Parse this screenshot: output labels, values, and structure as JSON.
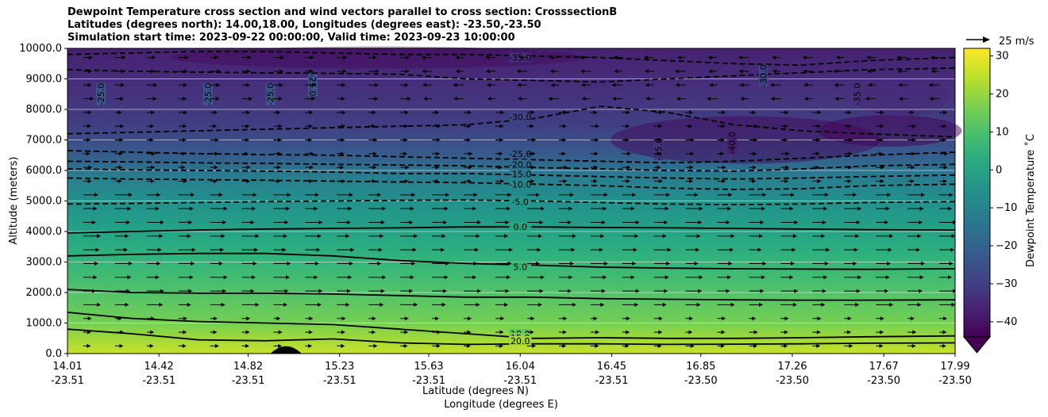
{
  "chart_data": {
    "type": "heatmap",
    "title_lines": [
      "Dewpoint Temperature cross section and wind vectors parallel to cross section: CrosssectionB",
      "Latitudes (degrees north): 14.00,18.00, Longitudes (degrees east): -23.50,-23.50",
      "Simulation start time: 2023-09-22 00:00:00, Valid time: 2023-09-23 10:00:00"
    ],
    "ylabel": "Altitude (meters)",
    "xlabel_lines": [
      "Latitude (degrees N)",
      "Longitude (degrees E)"
    ],
    "ylim": [
      0,
      10000
    ],
    "xlim": [
      14.01,
      17.99
    ],
    "y_ticks": [
      0,
      1000,
      2000,
      3000,
      4000,
      5000,
      6000,
      7000,
      8000,
      9000,
      10000
    ],
    "y_tick_labels": [
      "0.0",
      "1000.0",
      "2000.0",
      "3000.0",
      "4000.0",
      "5000.0",
      "6000.0",
      "7000.0",
      "8000.0",
      "9000.0",
      "10000.0"
    ],
    "x_ticks": [
      {
        "lat": "14.01",
        "lon": "-23.51"
      },
      {
        "lat": "14.42",
        "lon": "-23.51"
      },
      {
        "lat": "14.82",
        "lon": "-23.51"
      },
      {
        "lat": "15.23",
        "lon": "-23.51"
      },
      {
        "lat": "15.63",
        "lon": "-23.51"
      },
      {
        "lat": "16.04",
        "lon": "-23.51"
      },
      {
        "lat": "16.45",
        "lon": "-23.51"
      },
      {
        "lat": "16.85",
        "lon": "-23.50"
      },
      {
        "lat": "17.26",
        "lon": "-23.50"
      },
      {
        "lat": "17.67",
        "lon": "-23.50"
      },
      {
        "lat": "17.99",
        "lon": "-23.50"
      }
    ],
    "grid": "horizontal",
    "colorbar": {
      "label": "Dewpoint Temperature ˚C",
      "colormap": "viridis",
      "range": [
        -44,
        32
      ],
      "ticks": [
        30,
        20,
        10,
        0,
        -10,
        -20,
        -30,
        -40
      ],
      "tick_labels": [
        "30",
        "20",
        "10",
        "0",
        "−10",
        "−20",
        "−30",
        "−40"
      ],
      "extend": "min"
    },
    "wind_key": {
      "label": "25 m/s"
    },
    "contour_levels": [
      {
        "value": -40,
        "label": "-40.0",
        "style": "dashed"
      },
      {
        "value": -35,
        "label": "-35.0",
        "style": "dashed"
      },
      {
        "value": -30,
        "label": "-30.0",
        "style": "dashed"
      },
      {
        "value": -25,
        "label": "-25.0",
        "style": "dashed"
      },
      {
        "value": -20,
        "label": "-20.0",
        "style": "dashed"
      },
      {
        "value": -15,
        "label": "-15.0",
        "style": "dashed"
      },
      {
        "value": -10,
        "label": "-10.0",
        "style": "dashed"
      },
      {
        "value": -5,
        "label": "-5.0",
        "style": "dashed"
      },
      {
        "value": 0,
        "label": "0.0",
        "style": "solid"
      },
      {
        "value": 5,
        "label": "5.0",
        "style": "solid"
      },
      {
        "value": 10,
        "label": "10.0",
        "style": "solid"
      },
      {
        "value": 15,
        "label": "15.0",
        "style": "solid"
      },
      {
        "value": 20,
        "label": "20.0",
        "style": "solid"
      }
    ],
    "dewpoint_profile": [
      {
        "altitude": 0,
        "value": 26
      },
      {
        "altitude": 500,
        "value": 21
      },
      {
        "altitude": 1000,
        "value": 16
      },
      {
        "altitude": 2000,
        "value": 11
      },
      {
        "altitude": 3000,
        "value": 6
      },
      {
        "altitude": 4000,
        "value": 0
      },
      {
        "altitude": 5000,
        "value": -6
      },
      {
        "altitude": 5800,
        "value": -12
      },
      {
        "altitude": 6500,
        "value": -22
      },
      {
        "altitude": 7500,
        "value": -30
      },
      {
        "altitude": 8500,
        "value": -33
      },
      {
        "altitude": 10000,
        "value": -37
      }
    ],
    "terrain": {
      "lat_from": 14.92,
      "lat_to": 15.06,
      "peak_altitude": 220
    }
  }
}
